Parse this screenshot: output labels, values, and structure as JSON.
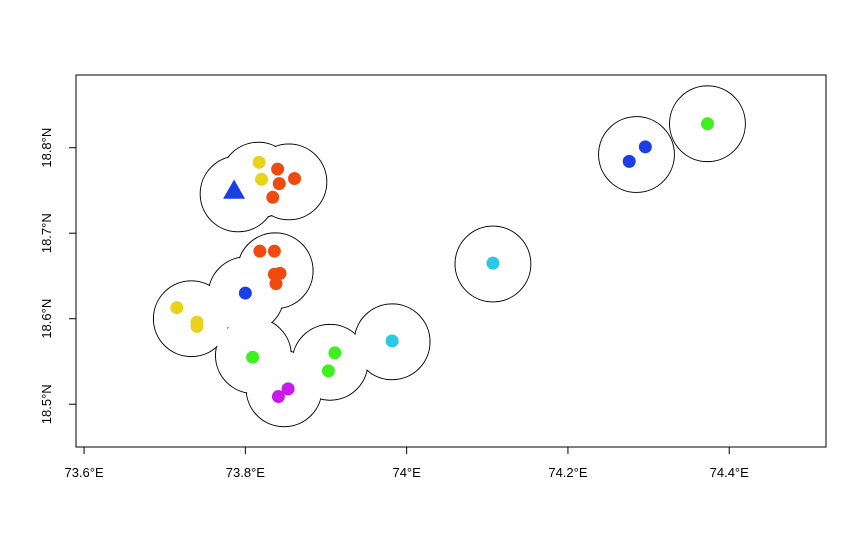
{
  "chart_data": {
    "type": "scatter",
    "title": "",
    "xlabel": "",
    "ylabel": "",
    "xlim": [
      73.59,
      74.52
    ],
    "ylim": [
      18.45,
      18.885
    ],
    "grid": false,
    "legend": "none",
    "x_ticks": [
      {
        "value": 73.6,
        "label": "73.6°E"
      },
      {
        "value": 73.8,
        "label": "73.8°E"
      },
      {
        "value": 74.0,
        "label": "74°E"
      },
      {
        "value": 74.2,
        "label": "74.2°E"
      },
      {
        "value": 74.4,
        "label": "74.4°E"
      }
    ],
    "y_ticks": [
      {
        "value": 18.5,
        "label": "18.5°N"
      },
      {
        "value": 18.6,
        "label": "18.6°N"
      },
      {
        "value": 18.7,
        "label": "18.7°N"
      },
      {
        "value": 18.8,
        "label": "18.8°N"
      }
    ],
    "buffer_radius_deg": 0.047,
    "buffer_centers": [
      {
        "x": 73.816,
        "y": 18.762
      },
      {
        "x": 73.791,
        "y": 18.746
      },
      {
        "x": 73.854,
        "y": 18.76
      },
      {
        "x": 73.837,
        "y": 18.656
      },
      {
        "x": 73.801,
        "y": 18.628
      },
      {
        "x": 73.733,
        "y": 18.6
      },
      {
        "x": 73.81,
        "y": 18.557
      },
      {
        "x": 73.848,
        "y": 18.518
      },
      {
        "x": 73.905,
        "y": 18.549
      },
      {
        "x": 73.982,
        "y": 18.573
      },
      {
        "x": 74.107,
        "y": 18.664
      },
      {
        "x": 74.285,
        "y": 18.792
      },
      {
        "x": 74.373,
        "y": 18.828
      }
    ],
    "points": [
      {
        "x": 73.786,
        "y": 18.75,
        "color": "#1a3fe6",
        "shape": "triangle"
      },
      {
        "x": 73.817,
        "y": 18.783,
        "color": "#e8d21a",
        "shape": "circle"
      },
      {
        "x": 73.82,
        "y": 18.763,
        "color": "#e8d21a",
        "shape": "circle"
      },
      {
        "x": 73.84,
        "y": 18.775,
        "color": "#ef4a10",
        "shape": "circle"
      },
      {
        "x": 73.842,
        "y": 18.758,
        "color": "#ef4a10",
        "shape": "circle"
      },
      {
        "x": 73.861,
        "y": 18.764,
        "color": "#ef4a10",
        "shape": "circle"
      },
      {
        "x": 73.834,
        "y": 18.742,
        "color": "#ef4a10",
        "shape": "circle"
      },
      {
        "x": 73.818,
        "y": 18.679,
        "color": "#ef4a10",
        "shape": "circle"
      },
      {
        "x": 73.836,
        "y": 18.679,
        "color": "#ef4a10",
        "shape": "circle"
      },
      {
        "x": 73.836,
        "y": 18.652,
        "color": "#ef4a10",
        "shape": "circle"
      },
      {
        "x": 73.843,
        "y": 18.653,
        "color": "#ef4a10",
        "shape": "circle"
      },
      {
        "x": 73.838,
        "y": 18.641,
        "color": "#ef4a10",
        "shape": "circle"
      },
      {
        "x": 73.8,
        "y": 18.63,
        "color": "#1a3fe6",
        "shape": "circle"
      },
      {
        "x": 73.715,
        "y": 18.613,
        "color": "#e8d21a",
        "shape": "circle"
      },
      {
        "x": 73.74,
        "y": 18.596,
        "color": "#e8d21a",
        "shape": "circle"
      },
      {
        "x": 73.74,
        "y": 18.591,
        "color": "#e8d21a",
        "shape": "circle"
      },
      {
        "x": 73.809,
        "y": 18.555,
        "color": "#3ef020",
        "shape": "circle"
      },
      {
        "x": 73.911,
        "y": 18.56,
        "color": "#3ef020",
        "shape": "circle"
      },
      {
        "x": 73.903,
        "y": 18.539,
        "color": "#3ef020",
        "shape": "circle"
      },
      {
        "x": 73.853,
        "y": 18.518,
        "color": "#c81aeb",
        "shape": "circle"
      },
      {
        "x": 73.841,
        "y": 18.509,
        "color": "#c81aeb",
        "shape": "circle"
      },
      {
        "x": 73.982,
        "y": 18.574,
        "color": "#28c8e6",
        "shape": "circle"
      },
      {
        "x": 74.107,
        "y": 18.665,
        "color": "#28c8e6",
        "shape": "circle"
      },
      {
        "x": 74.276,
        "y": 18.784,
        "color": "#1a3fe6",
        "shape": "circle"
      },
      {
        "x": 74.296,
        "y": 18.801,
        "color": "#1a3fe6",
        "shape": "circle"
      },
      {
        "x": 74.373,
        "y": 18.828,
        "color": "#3ef020",
        "shape": "circle"
      }
    ]
  }
}
